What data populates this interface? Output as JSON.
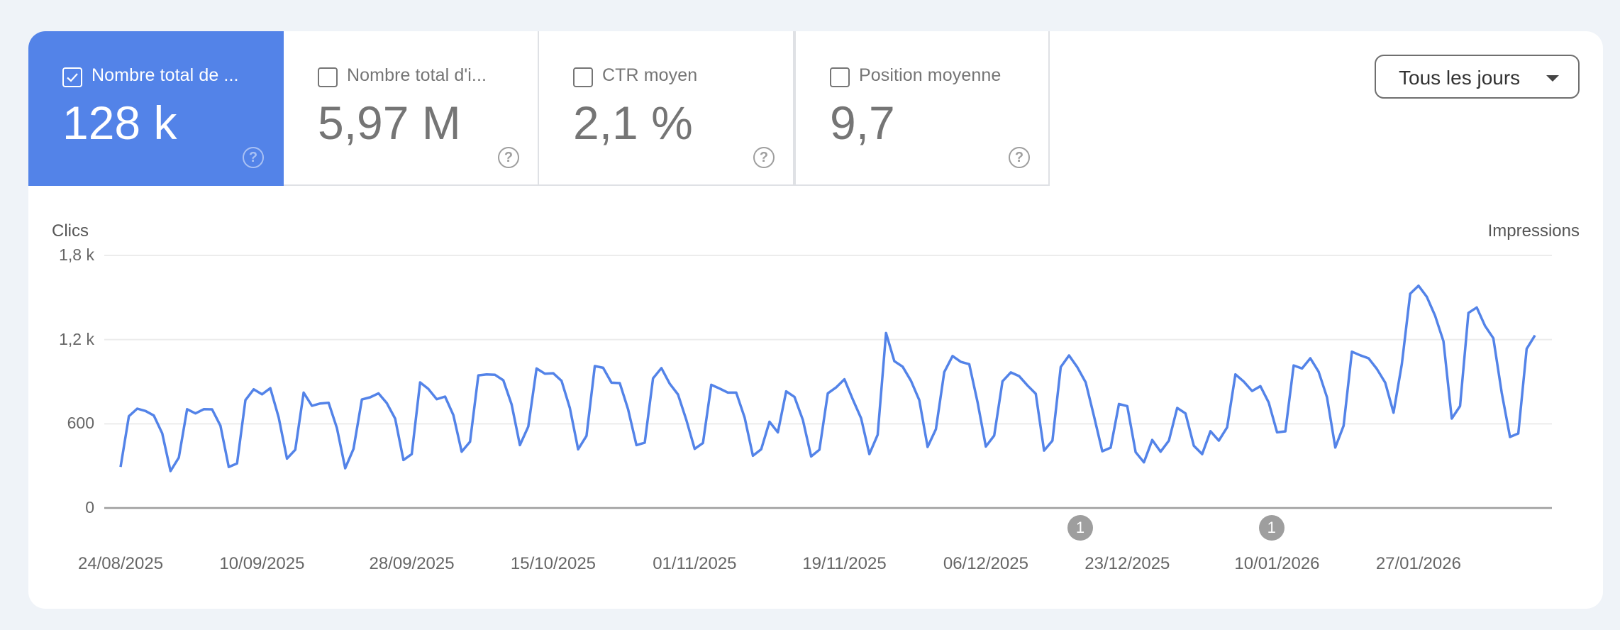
{
  "metrics": [
    {
      "label": "Nombre total de ...",
      "value": "128 k",
      "checked": true,
      "help": "?"
    },
    {
      "label": "Nombre total d'i...",
      "value": "5,97 M",
      "checked": false,
      "help": "?"
    },
    {
      "label": "CTR moyen",
      "value": "2,1 %",
      "checked": false,
      "help": "?"
    },
    {
      "label": "Position moyenne",
      "value": "9,7",
      "checked": false,
      "help": "?"
    }
  ],
  "range_select": {
    "value": "Tous les jours"
  },
  "colors": {
    "accent": "#5383e8",
    "line": "#5383e8",
    "marker": "#9e9e9e"
  },
  "annotations": [
    {
      "label": "1",
      "x_index": 115
    },
    {
      "label": "1",
      "x_index": 138
    }
  ],
  "chart_data": {
    "type": "line",
    "title": "",
    "ylabel": "Clics",
    "ylabel_right": "Impressions",
    "xlabel": "",
    "ylim": [
      0,
      1800
    ],
    "y_ticks": [
      {
        "value": 0,
        "label": "0"
      },
      {
        "value": 600,
        "label": "600"
      },
      {
        "value": 1200,
        "label": "1,2 k"
      },
      {
        "value": 1800,
        "label": "1,8 k"
      }
    ],
    "x_ticks": [
      {
        "index": 0,
        "label": "24/08/2025"
      },
      {
        "index": 17,
        "label": "10/09/2025"
      },
      {
        "index": 35,
        "label": "28/09/2025"
      },
      {
        "index": 52,
        "label": "15/10/2025"
      },
      {
        "index": 69,
        "label": "01/11/2025"
      },
      {
        "index": 87,
        "label": "19/11/2025"
      },
      {
        "index": 104,
        "label": "06/12/2025"
      },
      {
        "index": 121,
        "label": "23/12/2025"
      },
      {
        "index": 139,
        "label": "10/01/2026"
      },
      {
        "index": 156,
        "label": "27/01/2026"
      }
    ],
    "grid": true,
    "legend": "none",
    "series": [
      {
        "name": "Clics",
        "values": [
          292,
          654,
          708,
          691,
          659,
          532,
          263,
          359,
          704,
          674,
          704,
          703,
          586,
          292,
          317,
          768,
          846,
          810,
          854,
          645,
          352,
          415,
          822,
          728,
          745,
          750,
          570,
          283,
          421,
          773,
          789,
          817,
          747,
          637,
          342,
          384,
          895,
          848,
          775,
          794,
          662,
          401,
          472,
          945,
          952,
          949,
          910,
          738,
          448,
          580,
          994,
          957,
          960,
          906,
          713,
          418,
          514,
          1011,
          999,
          893,
          890,
          704,
          448,
          465,
          924,
          997,
          886,
          809,
          628,
          421,
          463,
          878,
          851,
          822,
          822,
          645,
          372,
          418,
          615,
          539,
          831,
          792,
          628,
          367,
          415,
          817,
          859,
          917,
          775,
          640,
          384,
          522,
          1247,
          1046,
          1007,
          906,
          768,
          435,
          561,
          969,
          1083,
          1041,
          1025,
          755,
          438,
          516,
          903,
          966,
          940,
          873,
          814,
          409,
          480,
          1004,
          1087,
          1002,
          895,
          654,
          404,
          430,
          741,
          726,
          398,
          325,
          485,
          401,
          480,
          713,
          674,
          443,
          384,
          547,
          480,
          575,
          952,
          901,
          834,
          868,
          752,
          539,
          546,
          1016,
          994,
          1067,
          971,
          789,
          431,
          586,
          1114,
          1088,
          1067,
          991,
          893,
          679,
          1025,
          1527,
          1584,
          1505,
          1370,
          1188,
          637,
          726,
          1390,
          1429,
          1298,
          1210,
          822,
          506,
          531,
          1134,
          1230
        ]
      }
    ]
  }
}
